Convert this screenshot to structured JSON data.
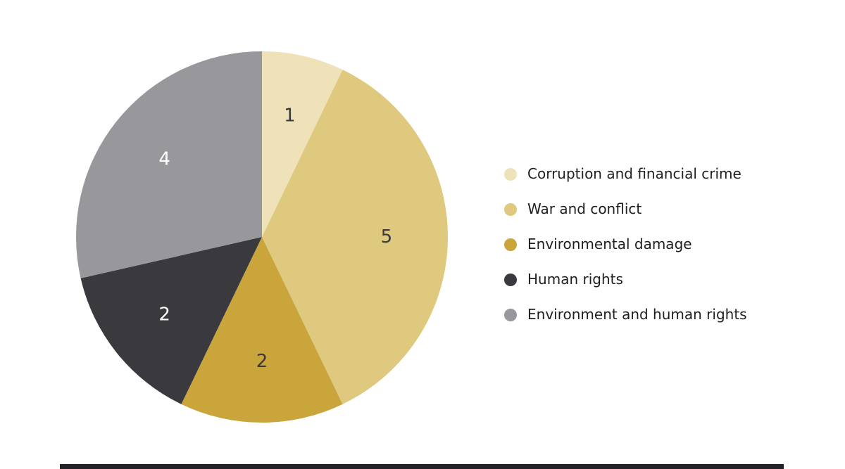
{
  "chart_data": {
    "type": "pie",
    "title": "",
    "categories": [
      "Corruption and financial crime",
      "War and conflict",
      "Environmental damage",
      "Human rights",
      "Environment and human rights"
    ],
    "values": [
      1,
      5,
      2,
      2,
      4
    ],
    "data_labels": [
      "1",
      "5",
      "2",
      "2",
      "4"
    ],
    "colors": [
      "#EFE2B8",
      "#DFC97E",
      "#C9A53C",
      "#3A393D",
      "#98979B"
    ],
    "label_colors": [
      "#3A393D",
      "#3A393D",
      "#3A393D",
      "#FFFFFF",
      "#FFFFFF"
    ],
    "start_angle_deg": 0,
    "direction": "clockwise",
    "legend_position": "right",
    "grid": false
  },
  "footer": {
    "bar_color": "#232127"
  }
}
